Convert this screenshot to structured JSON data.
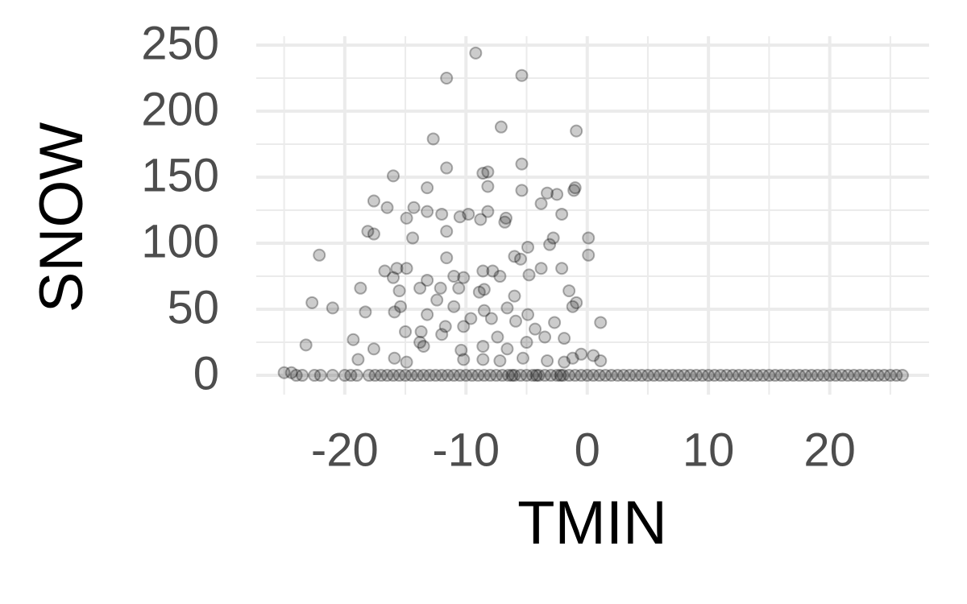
{
  "chart_data": {
    "type": "scatter",
    "x_label": "TMIN",
    "y_label": "SNOW",
    "xlim": [
      -27.3,
      28.2
    ],
    "ylim": [
      -14.6,
      256.7
    ],
    "xticks": [
      -20,
      -10,
      0,
      10,
      20
    ],
    "yticks": [
      0,
      50,
      100,
      150,
      200,
      250
    ],
    "grid": true,
    "minor_grid": true,
    "color": "#000000",
    "alpha": 0.2,
    "x": [
      -9.2,
      -11.6,
      -5.4,
      -7.1,
      -0.9,
      -12.7,
      -11.6,
      -5.4,
      -8.6,
      -8.2,
      -16,
      -8.2,
      -13.2,
      -1,
      -1.1,
      -5.4,
      -17.6,
      -3.3,
      -2.5,
      -3.8,
      -16.5,
      -14.3,
      -12,
      -9.8,
      -10.5,
      -8.2,
      -8.8,
      -6.7,
      -6.8,
      -13.2,
      -2.1,
      -14.9,
      -18.1,
      -17.6,
      -11.6,
      -14.4,
      0.1,
      -2.8,
      -4.9,
      -3.1,
      0.1,
      -22.1,
      -6,
      -5.5,
      -11.6,
      -2.1,
      -3.8,
      -16.7,
      -14.9,
      -15.7,
      -7.8,
      -8.6,
      -4.8,
      -11,
      -7.2,
      -10.2,
      -13.2,
      -16,
      -15.5,
      -1.5,
      -18.7,
      -13.8,
      -12.1,
      -10.6,
      -8.9,
      -8.5,
      -6,
      -22.7,
      -15.4,
      -21,
      -12.4,
      -11,
      -18.3,
      -6.6,
      -4.9,
      -1.2,
      -0.9,
      1.1,
      -15.9,
      -13.2,
      -8.5,
      -10.2,
      -9.6,
      -7.9,
      -4.3,
      -5.9,
      -15,
      -11.7,
      -12,
      -19.3,
      -7.4,
      -2.7,
      -17.6,
      -23.2,
      -13.8,
      -13.5,
      -10.4,
      -8.6,
      -6.6,
      -5,
      -3.5,
      -1.9,
      -0.5,
      0.5,
      -1.2,
      1.1,
      -18.9,
      -15.9,
      -14.9,
      -13.7,
      -10.2,
      -8.6,
      -7.2,
      -5.3,
      -3.3,
      -1.9,
      -25,
      -24.4,
      -24,
      -23.5,
      -22.5,
      -22,
      -21,
      -20,
      -19.5,
      -19,
      -18,
      -17.5,
      -17,
      -16.5,
      -16,
      -15.5,
      -15,
      -14.5,
      -14,
      -13.5,
      -13,
      -12.5,
      -12,
      -11.5,
      -11,
      -10.5,
      -10,
      -9.5,
      -9,
      -8.5,
      -8,
      -7.5,
      -7,
      -6.5,
      -6,
      -5.5,
      -5,
      -4.5,
      -4,
      -3.5,
      -3,
      -2.5,
      -2,
      -1.5,
      -1,
      -0.5,
      0,
      0.5,
      1,
      1.5,
      2,
      2.5,
      3,
      3.5,
      4,
      4.5,
      5,
      5.5,
      6,
      6.5,
      7,
      7.5,
      8,
      8.5,
      9,
      9.5,
      10,
      10.5,
      11,
      11.5,
      12,
      12.5,
      13,
      13.5,
      14,
      14.5,
      15,
      15.5,
      16,
      16.5,
      17,
      17.5,
      18,
      18.5,
      19,
      19.5,
      20,
      20.5,
      21,
      21.5,
      22,
      22.5,
      23,
      23.5,
      24,
      24.5,
      25,
      25.5,
      26,
      -2.2,
      -4.2,
      -6.2
    ],
    "values": [
      244,
      225,
      227,
      188,
      185,
      179,
      157,
      160,
      153,
      154,
      151,
      143,
      142,
      142,
      140,
      140,
      132,
      138,
      137,
      130,
      127,
      127,
      122,
      122,
      120,
      124,
      118,
      119,
      116,
      124,
      122,
      119,
      109,
      107,
      109,
      104,
      104,
      104,
      97,
      99,
      91,
      91,
      90,
      88,
      89,
      81,
      81,
      79,
      81,
      81,
      79,
      79,
      76,
      75,
      75,
      74,
      72,
      74,
      64,
      64,
      66,
      66,
      66,
      66,
      63,
      65,
      60,
      55,
      52,
      51,
      57,
      52,
      48,
      51,
      46,
      52,
      55,
      40,
      48,
      46,
      49,
      37,
      43,
      43,
      35,
      41,
      33,
      37,
      31,
      27,
      29,
      40,
      20,
      23,
      25,
      22,
      19,
      22,
      20,
      25,
      29,
      28,
      16,
      15,
      13,
      11,
      12,
      13,
      10,
      33,
      12,
      12,
      11,
      13,
      11,
      10,
      2,
      2,
      0,
      0,
      0,
      0,
      0,
      0,
      0,
      0,
      0,
      0,
      0,
      0,
      0,
      0,
      0,
      0,
      0,
      0,
      0,
      0,
      0,
      0,
      0,
      0,
      0,
      0,
      0,
      0,
      0,
      0,
      0,
      0,
      0,
      0,
      0,
      0,
      0,
      0,
      0,
      0,
      0,
      0,
      0,
      0,
      0,
      0,
      0,
      0,
      0,
      0,
      0,
      0,
      0,
      0,
      0,
      0,
      0,
      0,
      0,
      0,
      0,
      0,
      0,
      0,
      0,
      0,
      0,
      0,
      0,
      0,
      0,
      0,
      0,
      0,
      0,
      0,
      0,
      0,
      0,
      0,
      0,
      0,
      0,
      0,
      0,
      0,
      0,
      0,
      0,
      0,
      0,
      0,
      0,
      0,
      0,
      0,
      0,
      0,
      0,
      0
    ]
  }
}
